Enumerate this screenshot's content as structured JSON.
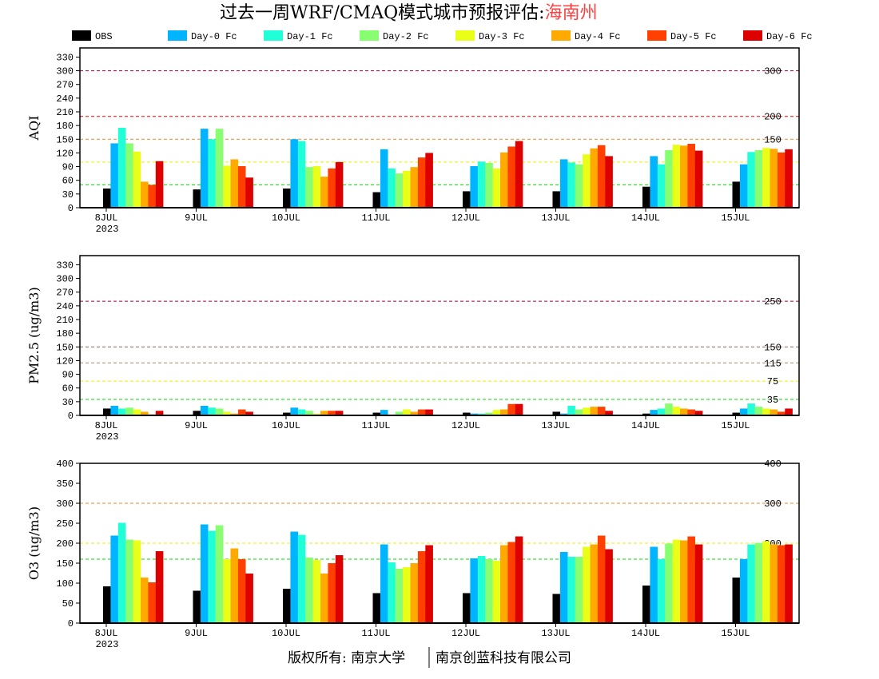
{
  "header": {
    "title_main": "过去一周WRF/CMAQ模式城市预报评估:",
    "title_city": "海南州",
    "city_color": "#ff4040"
  },
  "footer": {
    "left": "版权所有: 南京大学",
    "right": "南京创蓝科技有限公司"
  },
  "chart_data": {
    "type": "bar",
    "categories": [
      "8JUL",
      "9JUL",
      "10JUL",
      "11JUL",
      "12JUL",
      "13JUL",
      "14JUL",
      "15JUL"
    ],
    "year_label": "2023",
    "legend": [
      {
        "name": "OBS",
        "color": "#000000"
      },
      {
        "name": "Day-0 Fc",
        "color": "#00b4ff"
      },
      {
        "name": "Day-1 Fc",
        "color": "#20ffd8"
      },
      {
        "name": "Day-2 Fc",
        "color": "#88ff70"
      },
      {
        "name": "Day-3 Fc",
        "color": "#eaff18"
      },
      {
        "name": "Day-4 Fc",
        "color": "#ffaa00"
      },
      {
        "name": "Day-5 Fc",
        "color": "#ff4000"
      },
      {
        "name": "Day-6 Fc",
        "color": "#dd0000"
      }
    ],
    "panels": [
      {
        "ylabel": "AQI",
        "ylim": [
          0,
          350
        ],
        "yticks": [
          0,
          30,
          60,
          90,
          120,
          150,
          180,
          210,
          240,
          270,
          300,
          330
        ],
        "ref_lines": [
          {
            "value": 50,
            "label": "50",
            "color": "#00dd00"
          },
          {
            "value": 100,
            "label": "100",
            "color": "#eeee00"
          },
          {
            "value": 150,
            "label": "150",
            "color": "#ee8822"
          },
          {
            "value": 200,
            "label": "200",
            "color": "#ff0000"
          },
          {
            "value": 300,
            "label": "300",
            "color": "#990044"
          }
        ],
        "series": [
          [
            42,
            40,
            42,
            34,
            36,
            36,
            46,
            57
          ],
          [
            141,
            173,
            150,
            128,
            91,
            106,
            113,
            95
          ],
          [
            175,
            150,
            146,
            86,
            101,
            99,
            95,
            122
          ],
          [
            141,
            173,
            89,
            75,
            98,
            95,
            126,
            126
          ],
          [
            123,
            92,
            91,
            81,
            86,
            117,
            138,
            131
          ],
          [
            57,
            106,
            68,
            89,
            121,
            130,
            136,
            129
          ],
          [
            50,
            91,
            86,
            110,
            134,
            137,
            140,
            121
          ],
          [
            102,
            66,
            100,
            120,
            146,
            113,
            125,
            128
          ]
        ]
      },
      {
        "ylabel": "PM2.5 (ug/m3)",
        "ylim": [
          0,
          350
        ],
        "yticks": [
          0,
          30,
          60,
          90,
          120,
          150,
          180,
          210,
          240,
          270,
          300,
          330
        ],
        "ref_lines": [
          {
            "value": 35,
            "label": "35",
            "color": "#00dd00"
          },
          {
            "value": 75,
            "label": "75",
            "color": "#eeee00"
          },
          {
            "value": 115,
            "label": "115",
            "color": "#aa8866"
          },
          {
            "value": 150,
            "label": "150",
            "color": "#886666"
          },
          {
            "value": 250,
            "label": "250",
            "color": "#990044"
          }
        ],
        "series": [
          [
            15,
            10,
            6,
            6,
            6,
            8,
            4,
            6
          ],
          [
            21,
            21,
            17,
            12,
            4,
            4,
            12,
            15
          ],
          [
            15,
            17,
            13,
            0,
            4,
            21,
            15,
            26
          ],
          [
            17,
            15,
            10,
            8,
            6,
            13,
            26,
            19
          ],
          [
            13,
            8,
            4,
            13,
            12,
            17,
            19,
            15
          ],
          [
            8,
            4,
            10,
            8,
            13,
            19,
            15,
            13
          ],
          [
            2,
            13,
            10,
            13,
            25,
            19,
            13,
            8
          ],
          [
            10,
            8,
            10,
            13,
            25,
            10,
            10,
            15
          ]
        ]
      },
      {
        "ylabel": "O3 (ug/m3)",
        "ylim": [
          0,
          400
        ],
        "yticks": [
          0,
          50,
          100,
          150,
          200,
          250,
          300,
          350,
          400
        ],
        "ref_lines": [
          {
            "value": 160,
            "label": "160",
            "color": "#00dd00"
          },
          {
            "value": 200,
            "label": "200",
            "color": "#eeee00"
          },
          {
            "value": 300,
            "label": "300",
            "color": "#ee8822"
          },
          {
            "value": 400,
            "label": "400",
            "color": "#ff0000"
          }
        ],
        "series": [
          [
            92,
            81,
            86,
            75,
            75,
            73,
            94,
            114
          ],
          [
            219,
            247,
            229,
            197,
            162,
            178,
            191,
            160
          ],
          [
            251,
            231,
            221,
            152,
            168,
            166,
            160,
            197
          ],
          [
            209,
            245,
            164,
            136,
            160,
            166,
            199,
            201
          ],
          [
            207,
            160,
            158,
            140,
            156,
            191,
            209,
            205
          ],
          [
            114,
            187,
            124,
            150,
            195,
            197,
            207,
            197
          ],
          [
            102,
            160,
            150,
            180,
            203,
            219,
            217,
            195
          ],
          [
            180,
            124,
            170,
            195,
            217,
            185,
            197,
            197
          ]
        ]
      }
    ]
  }
}
